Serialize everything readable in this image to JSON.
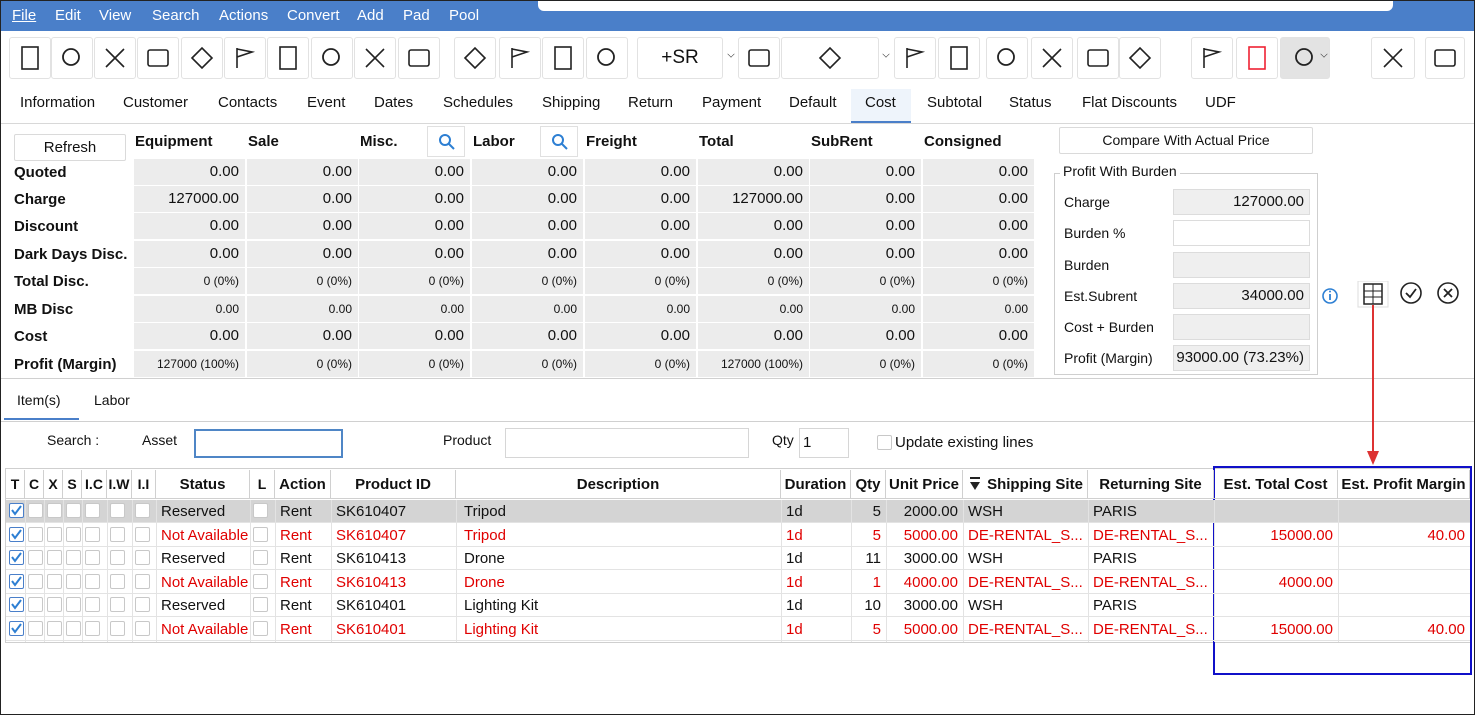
{
  "menu": [
    "File",
    "Edit",
    "View",
    "Search",
    "Actions",
    "Convert",
    "Add",
    "Pad",
    "Pool"
  ],
  "toolbar": {
    "sr_button": "+SR"
  },
  "tabs": {
    "items": [
      "Information",
      "Customer",
      "Contacts",
      "Event",
      "Dates",
      "Schedules",
      "Shipping",
      "Return",
      "Payment",
      "Default",
      "Cost",
      "Subtotal",
      "Status",
      "Flat Discounts",
      "UDF"
    ],
    "active": 10
  },
  "cost_grid": {
    "refresh": "Refresh",
    "columns": [
      "Equipment",
      "Sale",
      "Misc.",
      "Labor",
      "Freight",
      "Total",
      "SubRent",
      "Consigned"
    ],
    "rows": [
      {
        "label": "Quoted",
        "values": [
          "0.00",
          "0.00",
          "0.00",
          "0.00",
          "0.00",
          "0.00",
          "0.00",
          "0.00"
        ]
      },
      {
        "label": "Charge",
        "values": [
          "127000.00",
          "0.00",
          "0.00",
          "0.00",
          "0.00",
          "127000.00",
          "0.00",
          "0.00"
        ]
      },
      {
        "label": "Discount",
        "values": [
          "0.00",
          "0.00",
          "0.00",
          "0.00",
          "0.00",
          "0.00",
          "0.00",
          "0.00"
        ]
      },
      {
        "label": "Dark Days Disc.",
        "values": [
          "0.00",
          "0.00",
          "0.00",
          "0.00",
          "0.00",
          "0.00",
          "0.00",
          "0.00"
        ]
      },
      {
        "label": "Total Disc.",
        "values": [
          "0 (0%)",
          "0 (0%)",
          "0 (0%)",
          "0 (0%)",
          "0 (0%)",
          "0 (0%)",
          "0 (0%)",
          "0 (0%)"
        ]
      },
      {
        "label": "MB Disc",
        "values": [
          "0.00",
          "0.00",
          "0.00",
          "0.00",
          "0.00",
          "0.00",
          "0.00",
          "0.00"
        ]
      },
      {
        "label": "Cost",
        "values": [
          "0.00",
          "0.00",
          "0.00",
          "0.00",
          "0.00",
          "0.00",
          "0.00",
          "0.00"
        ]
      },
      {
        "label": "Profit (Margin)",
        "values": [
          "127000 (100%)",
          "0 (0%)",
          "0 (0%)",
          "0 (0%)",
          "0 (0%)",
          "127000 (100%)",
          "0 (0%)",
          "0 (0%)"
        ]
      }
    ]
  },
  "profit_panel": {
    "compare_button": "Compare With Actual Price",
    "title": "Profit With Burden",
    "fields": [
      {
        "label": "Charge",
        "value": "127000.00"
      },
      {
        "label": "Burden %"
      },
      {
        "label": "Burden"
      },
      {
        "label": "Est.Subrent",
        "value": "34000.00"
      },
      {
        "label": "Cost + Burden"
      },
      {
        "label": "Profit (Margin)",
        "value": "93000.00 (73.23%)"
      }
    ]
  },
  "items": {
    "tabs": [
      "Item(s)",
      "Labor"
    ],
    "search": {
      "label": "Search :",
      "asset": "Asset",
      "product": "Product",
      "qty": "Qty",
      "qty_value": "1",
      "update": "Update existing lines"
    },
    "columns": [
      "T",
      "C",
      "X",
      "S",
      "I.C",
      "I.W",
      "I.I",
      "Status",
      "L",
      "Action",
      "Product ID",
      "Description",
      "Duration",
      "Qty",
      "Unit Price",
      "Shipping Site",
      "Returning Site",
      "Est. Total Cost",
      "Est. Profit Margin"
    ],
    "rows": [
      {
        "selected": true,
        "cells": [
          "Reserved",
          "Rent",
          "SK610407",
          "Tripod",
          "1d",
          "5",
          "2000.00",
          "WSH",
          "PARIS",
          null,
          null
        ]
      },
      {
        "color": "#e00000",
        "cells": [
          "Not Available",
          "Rent",
          "SK610407",
          "Tripod",
          "1d",
          "5",
          "5000.00",
          "DE-RENTAL_S...",
          "DE-RENTAL_S...",
          "15000.00",
          "40.00"
        ]
      },
      {
        "cells": [
          "Reserved",
          "Rent",
          "SK610413",
          "Drone",
          "1d",
          "11",
          "3000.00",
          "WSH",
          "PARIS",
          null,
          null
        ]
      },
      {
        "color": "#e00000",
        "cells": [
          "Not Available",
          "Rent",
          "SK610413",
          "Drone",
          "1d",
          "1",
          "4000.00",
          "DE-RENTAL_S...",
          "DE-RENTAL_S...",
          "4000.00",
          null
        ]
      },
      {
        "cells": [
          "Reserved",
          "Rent",
          "SK610401",
          "Lighting Kit",
          "1d",
          "10",
          "3000.00",
          "WSH",
          "PARIS",
          null,
          null
        ]
      },
      {
        "color": "#e00000",
        "cells": [
          "Not Available",
          "Rent",
          "SK610401",
          "Lighting Kit",
          "1d",
          "5",
          "5000.00",
          "DE-RENTAL_S...",
          "DE-RENTAL_S...",
          "15000.00",
          "40.00"
        ]
      }
    ]
  }
}
